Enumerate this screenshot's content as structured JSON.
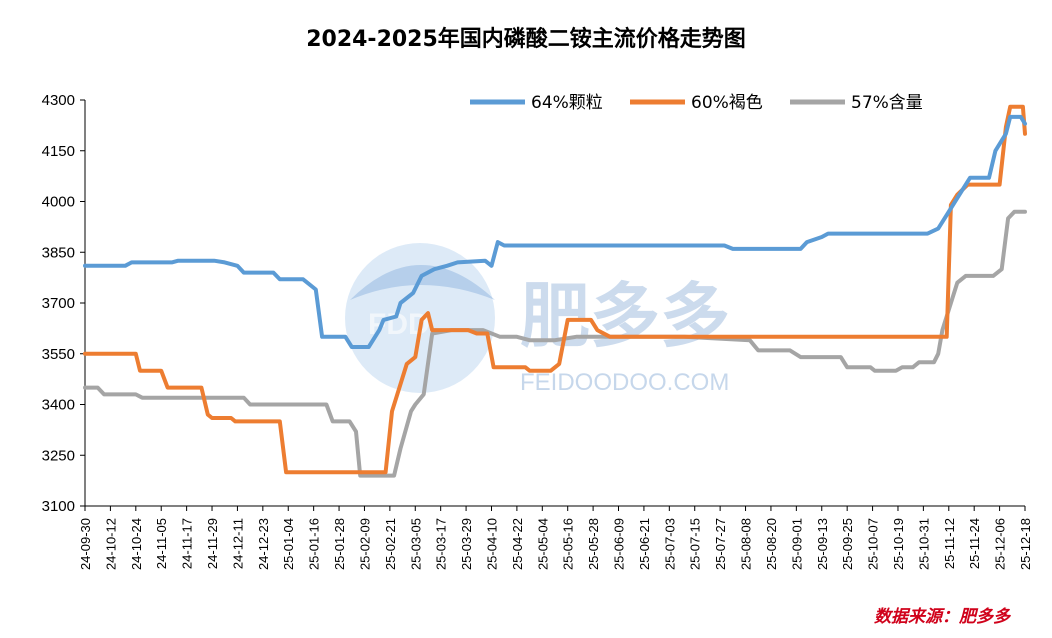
{
  "chart_data": {
    "type": "line",
    "title": "2024-2025年国内磷酸二铵主流价格走势图",
    "source": "数据来源：肥多多",
    "watermark": {
      "brand": "肥多多",
      "url": "FEIDOODOO.COM",
      "logo": "FDD"
    },
    "ylim": [
      3100,
      4300
    ],
    "yticks": [
      3100,
      3250,
      3400,
      3550,
      3700,
      3850,
      4000,
      4150,
      4300
    ],
    "grid": false,
    "legend_position": "top-right",
    "x_range": [
      "2024-09-30",
      "2025-12-18"
    ],
    "xticks": [
      "24-09-30",
      "24-10-12",
      "24-10-24",
      "24-11-05",
      "24-11-17",
      "24-11-29",
      "24-12-11",
      "24-12-23",
      "25-01-04",
      "25-01-16",
      "25-01-28",
      "25-02-09",
      "25-02-21",
      "25-03-05",
      "25-03-17",
      "25-03-29",
      "25-04-10",
      "25-04-22",
      "25-05-04",
      "25-05-16",
      "25-05-28",
      "25-06-09",
      "25-06-21",
      "25-07-03",
      "25-07-15",
      "25-07-27",
      "25-08-08",
      "25-08-20",
      "25-09-01",
      "25-09-13",
      "25-09-25",
      "25-10-07",
      "25-10-19",
      "25-10-31",
      "25-11-12",
      "25-11-24",
      "25-12-06",
      "25-12-18"
    ],
    "series": [
      {
        "name": "64%颗粒",
        "color": "#5b9bd5",
        "points": [
          [
            "2024-09-30",
            3810
          ],
          [
            "2024-10-19",
            3810
          ],
          [
            "2024-10-22",
            3820
          ],
          [
            "2024-11-10",
            3820
          ],
          [
            "2024-11-13",
            3825
          ],
          [
            "2024-11-30",
            3825
          ],
          [
            "2024-12-05",
            3820
          ],
          [
            "2024-12-11",
            3810
          ],
          [
            "2024-12-14",
            3790
          ],
          [
            "2024-12-28",
            3790
          ],
          [
            "2024-12-31",
            3770
          ],
          [
            "2025-01-11",
            3770
          ],
          [
            "2025-01-17",
            3740
          ],
          [
            "2025-01-20",
            3600
          ],
          [
            "2025-01-31",
            3600
          ],
          [
            "2025-02-03",
            3570
          ],
          [
            "2025-02-11",
            3570
          ],
          [
            "2025-02-16",
            3620
          ],
          [
            "2025-02-18",
            3650
          ],
          [
            "2025-02-24",
            3660
          ],
          [
            "2025-02-26",
            3700
          ],
          [
            "2025-03-04",
            3730
          ],
          [
            "2025-03-08",
            3780
          ],
          [
            "2025-03-14",
            3800
          ],
          [
            "2025-03-20",
            3810
          ],
          [
            "2025-03-25",
            3820
          ],
          [
            "2025-04-07",
            3825
          ],
          [
            "2025-04-10",
            3810
          ],
          [
            "2025-04-13",
            3880
          ],
          [
            "2025-04-16",
            3870
          ],
          [
            "2025-07-29",
            3870
          ],
          [
            "2025-08-02",
            3860
          ],
          [
            "2025-09-03",
            3860
          ],
          [
            "2025-09-06",
            3880
          ],
          [
            "2025-09-13",
            3895
          ],
          [
            "2025-09-16",
            3905
          ],
          [
            "2025-11-02",
            3905
          ],
          [
            "2025-11-07",
            3920
          ],
          [
            "2025-11-12",
            3970
          ],
          [
            "2025-11-16",
            4010
          ],
          [
            "2025-11-22",
            4070
          ],
          [
            "2025-12-01",
            4070
          ],
          [
            "2025-12-04",
            4150
          ],
          [
            "2025-12-07",
            4180
          ],
          [
            "2025-12-09",
            4200
          ],
          [
            "2025-12-11",
            4250
          ],
          [
            "2025-12-16",
            4250
          ],
          [
            "2025-12-18",
            4230
          ]
        ]
      },
      {
        "name": "60%褐色",
        "color": "#ed7d31",
        "points": [
          [
            "2024-09-30",
            3550
          ],
          [
            "2024-10-24",
            3550
          ],
          [
            "2024-10-26",
            3500
          ],
          [
            "2024-11-05",
            3500
          ],
          [
            "2024-11-08",
            3450
          ],
          [
            "2024-11-24",
            3450
          ],
          [
            "2024-11-27",
            3370
          ],
          [
            "2024-11-29",
            3360
          ],
          [
            "2024-12-08",
            3360
          ],
          [
            "2024-12-10",
            3350
          ],
          [
            "2024-12-31",
            3350
          ],
          [
            "2025-01-03",
            3200
          ],
          [
            "2025-02-19",
            3200
          ],
          [
            "2025-02-22",
            3380
          ],
          [
            "2025-02-27",
            3480
          ],
          [
            "2025-03-01",
            3520
          ],
          [
            "2025-03-05",
            3540
          ],
          [
            "2025-03-08",
            3650
          ],
          [
            "2025-03-11",
            3670
          ],
          [
            "2025-03-13",
            3620
          ],
          [
            "2025-03-30",
            3620
          ],
          [
            "2025-04-03",
            3610
          ],
          [
            "2025-04-08",
            3610
          ],
          [
            "2025-04-11",
            3510
          ],
          [
            "2025-04-26",
            3510
          ],
          [
            "2025-04-28",
            3500
          ],
          [
            "2025-05-08",
            3500
          ],
          [
            "2025-05-12",
            3520
          ],
          [
            "2025-05-16",
            3650
          ],
          [
            "2025-05-27",
            3650
          ],
          [
            "2025-05-30",
            3620
          ],
          [
            "2025-06-05",
            3600
          ],
          [
            "2025-11-11",
            3600
          ],
          [
            "2025-11-13",
            3990
          ],
          [
            "2025-11-16",
            4020
          ],
          [
            "2025-11-21",
            4050
          ],
          [
            "2025-12-06",
            4050
          ],
          [
            "2025-12-09",
            4220
          ],
          [
            "2025-12-11",
            4280
          ],
          [
            "2025-12-17",
            4280
          ],
          [
            "2025-12-18",
            4200
          ]
        ]
      },
      {
        "name": "57%含量",
        "color": "#a5a5a5",
        "points": [
          [
            "2024-09-30",
            3450
          ],
          [
            "2024-10-06",
            3450
          ],
          [
            "2024-10-09",
            3430
          ],
          [
            "2024-10-24",
            3430
          ],
          [
            "2024-10-27",
            3420
          ],
          [
            "2024-12-14",
            3420
          ],
          [
            "2024-12-17",
            3400
          ],
          [
            "2025-01-22",
            3400
          ],
          [
            "2025-01-25",
            3350
          ],
          [
            "2025-02-02",
            3350
          ],
          [
            "2025-02-05",
            3320
          ],
          [
            "2025-02-07",
            3190
          ],
          [
            "2025-02-23",
            3190
          ],
          [
            "2025-02-26",
            3270
          ],
          [
            "2025-03-03",
            3380
          ],
          [
            "2025-03-05",
            3400
          ],
          [
            "2025-03-09",
            3430
          ],
          [
            "2025-03-13",
            3610
          ],
          [
            "2025-03-22",
            3620
          ],
          [
            "2025-04-06",
            3620
          ],
          [
            "2025-04-14",
            3600
          ],
          [
            "2025-04-22",
            3600
          ],
          [
            "2025-04-28",
            3590
          ],
          [
            "2025-05-10",
            3590
          ],
          [
            "2025-05-20",
            3600
          ],
          [
            "2025-07-10",
            3600
          ],
          [
            "2025-08-10",
            3590
          ],
          [
            "2025-08-14",
            3560
          ],
          [
            "2025-08-29",
            3560
          ],
          [
            "2025-09-03",
            3540
          ],
          [
            "2025-09-22",
            3540
          ],
          [
            "2025-09-25",
            3510
          ],
          [
            "2025-10-06",
            3510
          ],
          [
            "2025-10-08",
            3500
          ],
          [
            "2025-10-18",
            3500
          ],
          [
            "2025-10-21",
            3510
          ],
          [
            "2025-10-26",
            3510
          ],
          [
            "2025-10-29",
            3525
          ],
          [
            "2025-11-05",
            3525
          ],
          [
            "2025-11-07",
            3550
          ],
          [
            "2025-11-09",
            3620
          ],
          [
            "2025-11-13",
            3700
          ],
          [
            "2025-11-16",
            3760
          ],
          [
            "2025-11-20",
            3780
          ],
          [
            "2025-12-03",
            3780
          ],
          [
            "2025-12-07",
            3800
          ],
          [
            "2025-12-10",
            3950
          ],
          [
            "2025-12-13",
            3970
          ],
          [
            "2025-12-18",
            3970
          ]
        ]
      }
    ]
  }
}
